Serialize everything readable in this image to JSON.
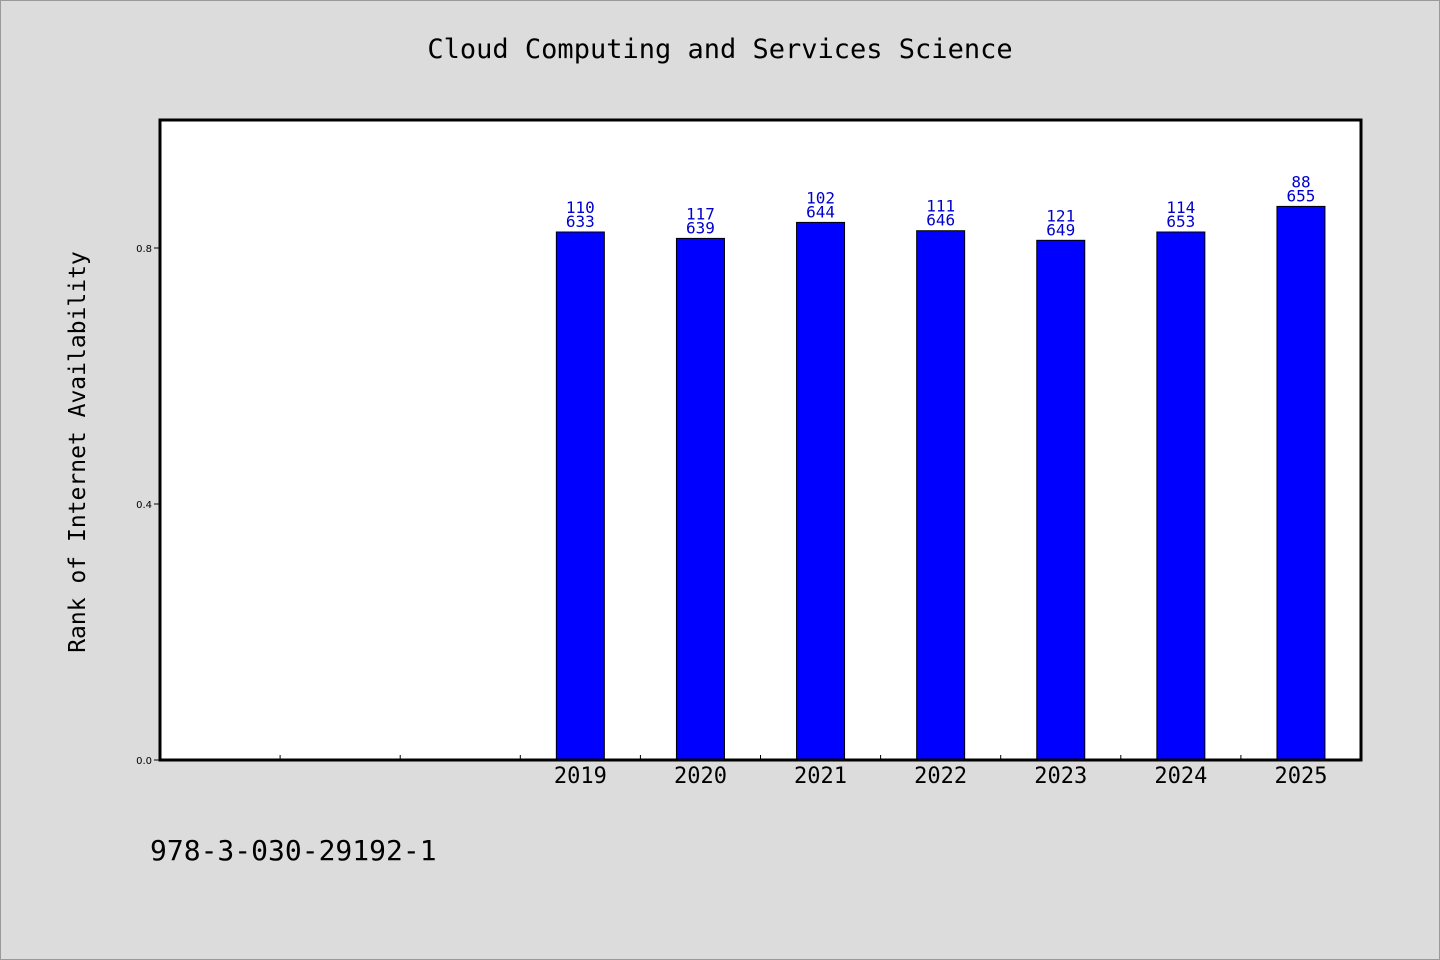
{
  "chart_data": {
    "type": "bar",
    "title": "Cloud Computing and Services Science",
    "ylabel": "Rank of Internet Availability",
    "xlabel": "",
    "categories": [
      "",
      "",
      "",
      "2019",
      "2020",
      "2021",
      "2022",
      "2023",
      "2024",
      "2025"
    ],
    "values": [
      null,
      null,
      null,
      0.825,
      0.815,
      0.84,
      0.827,
      0.812,
      0.825,
      0.865
    ],
    "annotations": [
      null,
      null,
      null,
      [
        "110",
        "633"
      ],
      [
        "117",
        "639"
      ],
      [
        "102",
        "644"
      ],
      [
        "111",
        "646"
      ],
      [
        "121",
        "649"
      ],
      [
        "114",
        "653"
      ],
      [
        "88",
        "655"
      ]
    ],
    "ylim": [
      0,
      1.0
    ],
    "yticks": [
      "0.0",
      "0.4",
      "0.8"
    ],
    "ytick_values": [
      0.0,
      0.4,
      0.8
    ],
    "grid": false,
    "colors": {
      "bar": "#0000ff",
      "bar_edge": "#000000",
      "annotation": "#0000cc",
      "background": "#dcdcdc",
      "plot": "#ffffff"
    }
  },
  "footer": {
    "id": "978-3-030-29192-1"
  }
}
